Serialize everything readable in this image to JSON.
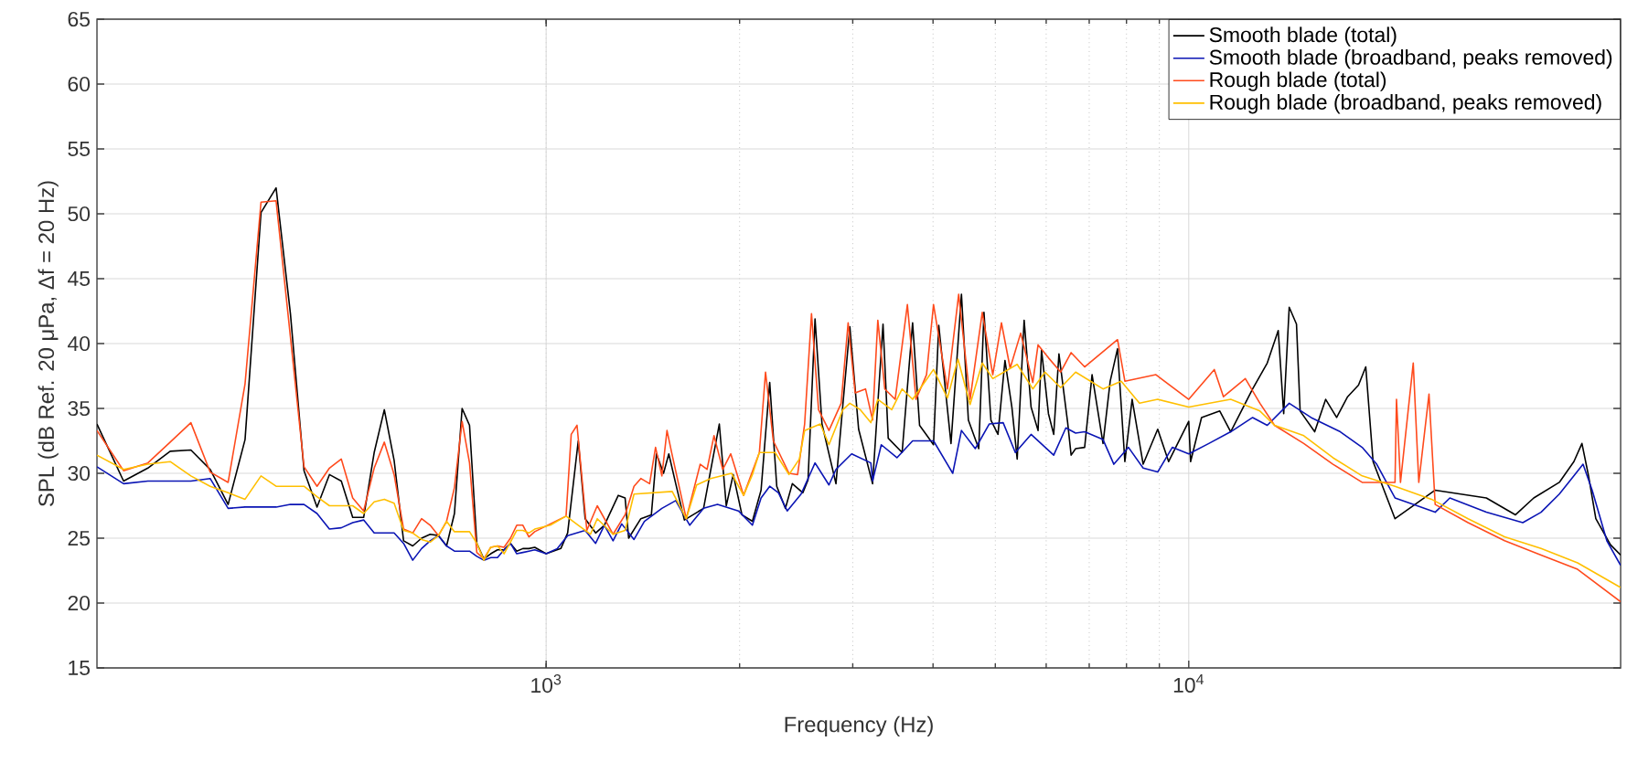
{
  "chart_data": {
    "type": "line",
    "xlabel": "Frequency (Hz)",
    "ylabel": "SPL (dB Ref. 20 μPa, Δf  = 20 Hz)",
    "log": "x",
    "xlim": [
      200,
      47000
    ],
    "ylim": [
      15,
      65
    ],
    "xticks": [
      {
        "value": 1000,
        "label": "10$^{3}$"
      },
      {
        "value": 10000,
        "label": "10$^{4}$"
      }
    ],
    "yticks": [
      15,
      20,
      25,
      30,
      35,
      40,
      45,
      50,
      55,
      60,
      65
    ],
    "grid": true,
    "legend": "top right",
    "series": [
      {
        "name": "Smooth blade (total)",
        "color": "#000000",
        "x": [
          200,
          220,
          240,
          260,
          280,
          300,
          320,
          340,
          360,
          380,
          400,
          420,
          440,
          460,
          480,
          500,
          520,
          540,
          560,
          580,
          600,
          620,
          640,
          660,
          680,
          700,
          720,
          740,
          760,
          780,
          800,
          820,
          840,
          860,
          880,
          900,
          920,
          940,
          960,
          1000,
          1054,
          1080,
          1122,
          1150,
          1194,
          1232,
          1295,
          1327,
          1344,
          1404,
          1458,
          1485,
          1523,
          1552,
          1591,
          1641,
          1758,
          1860,
          1907,
          1955,
          2017,
          2094,
          2160,
          2228,
          2285,
          2357,
          2416,
          2509,
          2556,
          2621,
          2687,
          2825,
          2896,
          2969,
          3064,
          3221,
          3344,
          3407,
          3581,
          3718,
          3812,
          4007,
          4083,
          4266,
          4429,
          4540,
          4712,
          4801,
          4922,
          5048,
          5176,
          5306,
          5408,
          5544,
          5684,
          5828,
          5901,
          6049,
          6164,
          6281,
          6480,
          6561,
          6668,
          6887,
          7073,
          7356,
          7548,
          7749,
          7956,
          8164,
          8493,
          8948,
          9305,
          10000,
          10066,
          10469,
          11176,
          11622,
          12572,
          13249,
          13780,
          14053,
          14333,
          14712,
          14906,
          15704,
          16335,
          16988,
          17670,
          18372,
          18860,
          19360,
          20941,
          24181,
          26503,
          29050,
          32249,
          34427,
          37730,
          39755,
          40915,
          41897,
          43004,
          45312,
          47000
        ],
        "values": [
          33.8,
          29.4,
          30.4,
          31.7,
          31.8,
          30.3,
          27.6,
          32.6,
          50.1,
          52.0,
          42.3,
          30.2,
          27.4,
          29.9,
          29.4,
          26.6,
          26.6,
          31.6,
          34.9,
          31.0,
          24.8,
          24.4,
          25.0,
          25.3,
          25.2,
          24.4,
          26.9,
          35.0,
          33.7,
          24.6,
          23.4,
          23.8,
          24.1,
          24.1,
          24.6,
          24.0,
          24.2,
          24.2,
          24.3,
          23.8,
          24.2,
          25.4,
          32.5,
          26.5,
          25.4,
          26.0,
          28.3,
          28.1,
          25.0,
          26.5,
          26.8,
          31.5,
          30.0,
          31.5,
          29.2,
          26.4,
          27.3,
          33.8,
          27.5,
          29.9,
          26.8,
          26.3,
          28.7,
          37.0,
          29.0,
          27.3,
          29.2,
          28.5,
          29.5,
          41.9,
          33.8,
          29.2,
          35.3,
          41.3,
          33.4,
          29.2,
          41.5,
          32.7,
          31.6,
          41.6,
          33.7,
          32.2,
          41.4,
          32.3,
          43.8,
          34.1,
          31.9,
          42.4,
          34.1,
          33.0,
          38.7,
          35.1,
          31.1,
          41.8,
          35.1,
          33.3,
          39.5,
          34.6,
          33.0,
          39.2,
          33.9,
          31.4,
          31.9,
          32.0,
          37.6,
          32.3,
          37.1,
          39.6,
          30.9,
          35.7,
          30.7,
          33.4,
          30.9,
          34.0,
          30.9,
          34.3,
          34.8,
          33.2,
          36.5,
          38.5,
          41.0,
          34.6,
          42.8,
          41.5,
          34.8,
          33.2,
          35.7,
          34.3,
          35.9,
          36.8,
          38.2,
          30.9,
          26.5,
          28.7,
          28.4,
          28.1,
          26.8,
          28.1,
          29.3,
          30.9,
          32.3,
          29.8,
          26.5,
          24.5,
          23.7
        ]
      },
      {
        "name": "Smooth blade (broadband, peaks removed)",
        "color": "#0a14b4",
        "x": [
          200,
          220,
          240,
          260,
          280,
          300,
          320,
          340,
          360,
          380,
          400,
          420,
          440,
          460,
          480,
          500,
          520,
          540,
          560,
          580,
          600,
          620,
          640,
          660,
          680,
          700,
          720,
          740,
          760,
          780,
          800,
          820,
          840,
          860,
          880,
          900,
          920,
          940,
          960,
          1000,
          1041,
          1080,
          1150,
          1194,
          1232,
          1271,
          1311,
          1370,
          1422,
          1514,
          1591,
          1673,
          1758,
          1848,
          1992,
          2094,
          2160,
          2228,
          2299,
          2372,
          2493,
          2621,
          2755,
          2825,
          2988,
          3201,
          3221,
          3323,
          3515,
          3718,
          4007,
          4293,
          4429,
          4654,
          4892,
          5143,
          5372,
          5684,
          6164,
          6439,
          6668,
          6887,
          7356,
          7648,
          8057,
          8493,
          8948,
          9428,
          10000,
          10746,
          11622,
          12572,
          13249,
          14333,
          15500,
          17212,
          18615,
          19616,
          20941,
          22355,
          24181,
          25485,
          29050,
          33105,
          35340,
          37730,
          39755,
          41076,
          42442,
          44730,
          47000
        ],
        "values": [
          30.5,
          29.2,
          29.4,
          29.4,
          29.4,
          29.6,
          27.3,
          27.4,
          27.4,
          27.4,
          27.6,
          27.6,
          26.9,
          25.7,
          25.8,
          26.2,
          26.4,
          25.4,
          25.4,
          25.4,
          24.6,
          23.3,
          24.2,
          24.8,
          25.2,
          24.4,
          24.0,
          24.0,
          24.0,
          23.6,
          23.3,
          23.5,
          23.5,
          24.1,
          24.6,
          23.8,
          23.9,
          24.0,
          24.1,
          23.8,
          24.2,
          25.2,
          25.6,
          24.6,
          26.0,
          24.8,
          26.1,
          24.9,
          26.3,
          27.3,
          27.9,
          26.0,
          27.3,
          27.6,
          27.1,
          26.0,
          28.1,
          29.0,
          28.5,
          27.1,
          28.4,
          30.8,
          29.1,
          30.3,
          31.5,
          30.8,
          29.4,
          32.2,
          31.2,
          32.5,
          32.5,
          30.0,
          33.3,
          31.9,
          33.8,
          33.9,
          31.6,
          33.0,
          31.4,
          33.5,
          33.1,
          33.2,
          32.6,
          30.7,
          32.0,
          30.4,
          30.1,
          32.0,
          31.5,
          32.3,
          33.2,
          34.3,
          33.7,
          35.4,
          34.3,
          33.2,
          32.0,
          30.7,
          28.1,
          27.6,
          27.0,
          28.1,
          27.0,
          26.2,
          27.0,
          28.4,
          29.8,
          30.7,
          28.7,
          24.8,
          22.9
        ]
      },
      {
        "name": "Rough blade (total)",
        "color": "#ff4a1c",
        "x": [
          200,
          220,
          240,
          260,
          280,
          300,
          320,
          340,
          360,
          380,
          400,
          420,
          440,
          460,
          480,
          500,
          520,
          540,
          560,
          580,
          600,
          620,
          640,
          660,
          680,
          700,
          720,
          740,
          760,
          780,
          800,
          820,
          840,
          860,
          880,
          900,
          920,
          940,
          960,
          1015,
          1074,
          1094,
          1117,
          1157,
          1201,
          1271,
          1327,
          1370,
          1404,
          1449,
          1480,
          1514,
          1542,
          1571,
          1652,
          1737,
          1780,
          1825,
          1883,
          1938,
          2029,
          2147,
          2195,
          2257,
          2387,
          2462,
          2525,
          2588,
          2654,
          2755,
          2878,
          2951,
          3026,
          3141,
          3221,
          3282,
          3365,
          3493,
          3649,
          3764,
          3908,
          4007,
          4212,
          4385,
          4568,
          4772,
          4955,
          5111,
          5273,
          5476,
          5719,
          5828,
          6049,
          6320,
          6561,
          6887,
          7749,
          7956,
          8891,
          10000,
          10959,
          11324,
          12248,
          12906,
          13600,
          15101,
          16767,
          18615,
          20941,
          21052,
          21355,
          22355,
          22803,
          23652,
          24181,
          27207,
          31012,
          35340,
          40280,
          47000
        ],
        "values": [
          33.3,
          30.2,
          30.8,
          32.4,
          33.9,
          30.1,
          29.3,
          36.9,
          50.9,
          51.0,
          40.5,
          30.5,
          29.0,
          30.4,
          31.1,
          28.1,
          27.1,
          30.4,
          32.4,
          29.9,
          25.7,
          25.4,
          26.5,
          26.0,
          25.2,
          26.3,
          28.9,
          34.0,
          30.8,
          23.9,
          23.4,
          24.3,
          24.4,
          24.3,
          25.0,
          26.0,
          26.0,
          25.1,
          25.5,
          26.1,
          26.7,
          33.0,
          33.7,
          25.6,
          27.5,
          25.3,
          26.8,
          29.0,
          29.6,
          29.2,
          32.0,
          29.8,
          33.3,
          31.4,
          26.5,
          30.7,
          30.3,
          32.9,
          30.3,
          31.5,
          28.3,
          31.6,
          37.8,
          32.5,
          30.0,
          29.9,
          33.8,
          42.3,
          34.9,
          33.3,
          35.4,
          41.6,
          36.2,
          36.5,
          34.1,
          41.8,
          36.5,
          35.7,
          43.0,
          35.7,
          37.6,
          43.0,
          36.5,
          43.8,
          35.7,
          42.4,
          37.6,
          41.6,
          38.1,
          40.8,
          37.0,
          39.9,
          38.9,
          37.8,
          39.3,
          38.2,
          40.3,
          37.1,
          37.6,
          35.7,
          38.0,
          35.9,
          37.3,
          35.4,
          33.7,
          32.3,
          30.7,
          29.3,
          29.3,
          35.7,
          29.3,
          38.5,
          29.3,
          36.1,
          27.6,
          26.2,
          24.8,
          23.7,
          22.6,
          20.1
        ]
      },
      {
        "name": "Rough blade (broadband, peaks removed)",
        "color": "#ffbf00",
        "x": [
          200,
          220,
          240,
          260,
          280,
          300,
          320,
          340,
          360,
          380,
          400,
          420,
          440,
          460,
          480,
          500,
          520,
          540,
          560,
          580,
          600,
          620,
          640,
          660,
          680,
          700,
          720,
          740,
          760,
          780,
          800,
          820,
          840,
          860,
          880,
          900,
          920,
          940,
          960,
          1015,
          1074,
          1122,
          1172,
          1201,
          1271,
          1327,
          1370,
          1571,
          1652,
          1715,
          1803,
          1943,
          2029,
          2094,
          2147,
          2271,
          2387,
          2478,
          2525,
          2671,
          2755,
          2896,
          2969,
          3083,
          3201,
          3282,
          3450,
          3581,
          3718,
          4007,
          4212,
          4374,
          4568,
          4772,
          4955,
          5408,
          5719,
          5975,
          6320,
          6668,
          7356,
          7852,
          8382,
          8948,
          10000,
          11622,
          12906,
          13600,
          15101,
          16767,
          18615,
          20941,
          23866,
          27207,
          31012,
          35340,
          40280,
          47000
        ],
        "values": [
          31.4,
          30.3,
          30.7,
          30.9,
          29.8,
          29.0,
          28.5,
          28.0,
          29.8,
          29.0,
          29.0,
          29.0,
          28.2,
          27.5,
          27.5,
          27.5,
          26.9,
          27.8,
          28.0,
          27.7,
          25.6,
          25.4,
          24.9,
          24.7,
          25.2,
          26.3,
          25.5,
          25.5,
          25.5,
          24.6,
          23.3,
          24.3,
          24.4,
          23.8,
          24.7,
          25.6,
          25.6,
          25.4,
          25.7,
          26.0,
          26.7,
          26.0,
          25.3,
          26.5,
          25.3,
          25.6,
          28.4,
          28.6,
          26.5,
          29.1,
          29.6,
          30.0,
          28.3,
          29.9,
          31.6,
          31.6,
          29.9,
          31.1,
          33.3,
          33.8,
          32.2,
          34.9,
          35.4,
          34.9,
          33.9,
          35.7,
          34.9,
          36.5,
          35.7,
          38.0,
          35.8,
          38.8,
          35.3,
          38.5,
          37.3,
          38.4,
          36.5,
          37.8,
          36.6,
          37.8,
          36.5,
          37.1,
          35.4,
          35.7,
          35.1,
          35.7,
          34.8,
          33.7,
          32.9,
          31.2,
          29.8,
          29.0,
          28.0,
          26.5,
          25.1,
          24.2,
          23.1,
          21.2
        ]
      }
    ]
  }
}
